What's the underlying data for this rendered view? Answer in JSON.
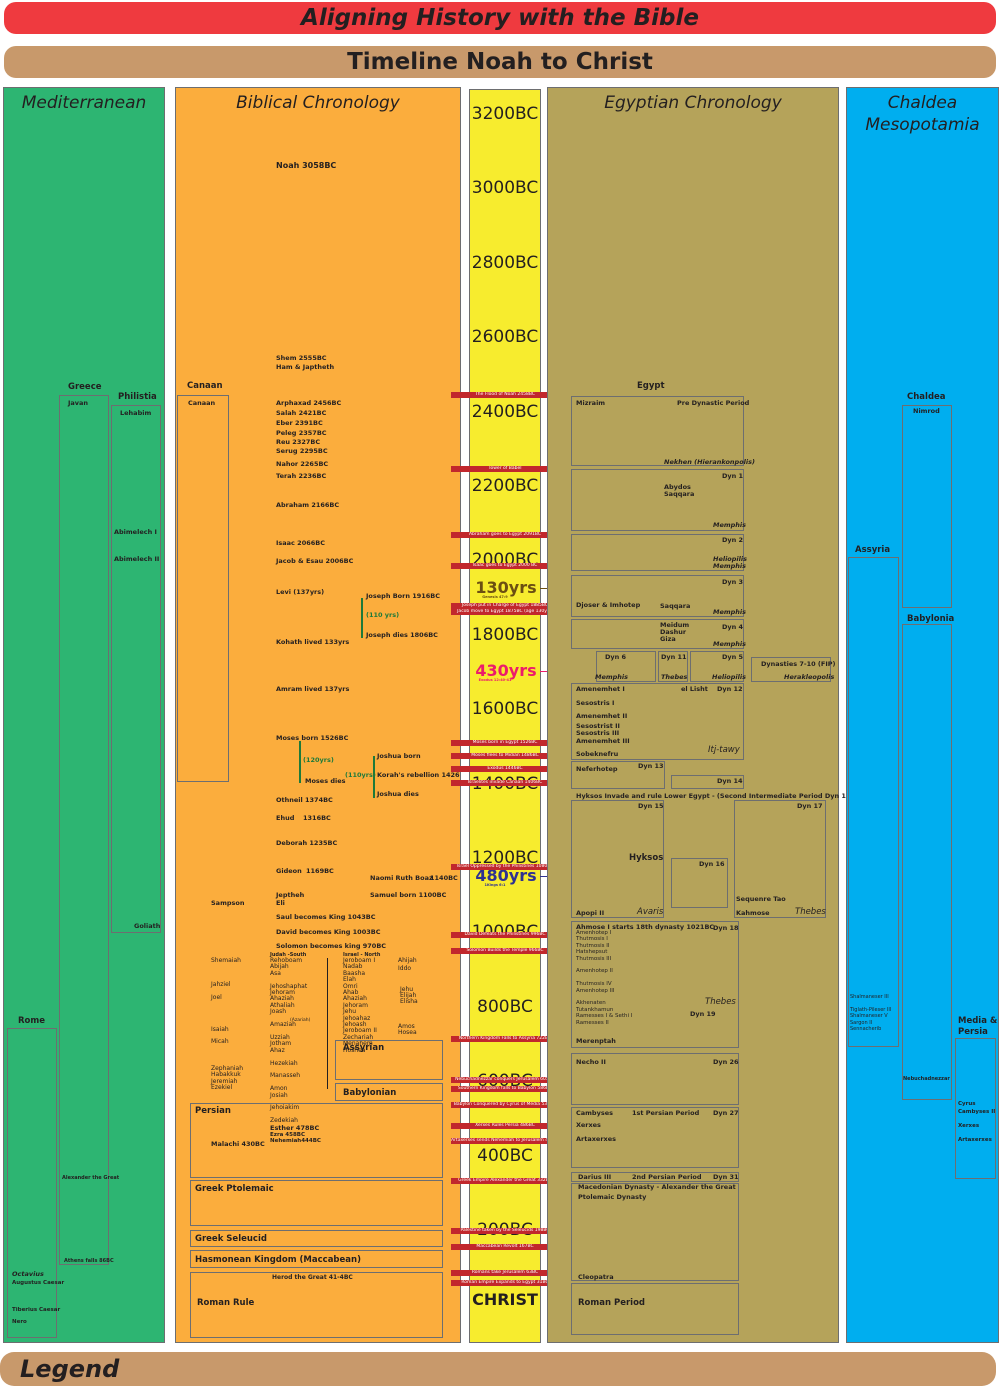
{
  "header": {
    "title": "Aligning History with the Bible",
    "subtitle": "Timeline Noah to Christ",
    "legend": "Legend"
  },
  "columns": {
    "mediterranean": "Mediterranean",
    "biblical": "Biblical Chronology",
    "egyptian": "Egyptian Chronology",
    "chaldea_line1": "Chaldea",
    "chaldea_line2": "Mesopotamia"
  },
  "colors": {
    "mediterranean": "#2db572",
    "biblical": "#fbad3d",
    "scale": "#f7ec2e",
    "egyptian": "#b5a35a",
    "chaldea": "#00aeef",
    "event": "#c1272d"
  },
  "years": [
    "3200BC",
    "3000BC",
    "2800BC",
    "2600BC",
    "2400BC",
    "2200BC",
    "2000BC",
    "1800BC",
    "1600BC",
    "1400BC",
    "1200BC",
    "1000BC",
    "800BC",
    "600BC",
    "400BC",
    "200BC"
  ],
  "christ": "CHRIST",
  "spans": {
    "s130": "130yrs",
    "s130_note": "Genesis 47:9",
    "s430": "430yrs",
    "s430_note": "Exodus 12:40-41",
    "s480": "480yrs",
    "s480_note": "1Kings 6:1"
  },
  "events": [
    "The Flood of Noah 2458BC",
    "Tower of Babel",
    "Abraham goes to Egypt 2091BC",
    "Isaac goes to Egypt 2000 BC",
    "Joseph put in Charge of Egypt 1885BC",
    "Jacob move to Egypt 1875BC (age 130yrs)",
    "Moses born in Egypt 1526BC",
    "Moses flees to Midian 1486BC",
    "Exodus 1446BC",
    "Israelites invade Canaan 1406BC",
    "Israel Oppressed by the Philistines 1080BC",
    "David Defeats the Philistines 996BC",
    "Solomon Builds the Temple 966BC",
    "Northern Kingdom Falls to Assyria 722BC",
    "Nebuchadnezzar conquers Jerusalem 605BC",
    "Southern Kingdom falls to Babylon 586BC",
    "Babylon Conquered by Cyrus of Media 539BC",
    "Xerxes Rules Persia 486BC",
    "Artaxerxes sends Nehemiah to Jerusalem 444BC",
    "Greek Empire Alexander the Great 332BC",
    "Palestine taken by the Seleucids 198BC",
    "Maccabean Revolt 167BC",
    "Romans take Jerusalem 63BC",
    "Roman Empire Expands to Egypt 31BC"
  ],
  "mediterranean": {
    "greece": "Greece",
    "javan": "Javan",
    "philistia": "Philistia",
    "lehabim": "Lehabim",
    "abimelech1": "Abimelech I",
    "abimelech2": "Abimelech II",
    "goliath": "Goliath",
    "alexander": "Alexander the Great",
    "athens": "Athens falls 86BC",
    "rome": "Rome",
    "octavius": "Octavius",
    "augustus": "Augustus Caesar",
    "tiberius": "Tiberius Caesar",
    "nero": "Nero"
  },
  "biblical": {
    "noah": "Noah 3058BC",
    "shem": "Shem 2555BC",
    "ham": "Ham & Japtheth",
    "canaan_label": "Canaan",
    "canaan_box": "Canaan",
    "patriarchs": [
      "Arphaxad 2456BC",
      "Salah 2421BC",
      "Eber 2391BC",
      "Peleg 2357BC",
      "Reu 2327BC",
      "Serug 2295BC"
    ],
    "nahor": "Nahor 2265BC",
    "terah": "Terah 2236BC",
    "abraham": "Abraham 2166BC",
    "isaac": "Isaac 2066BC",
    "jacob": "Jacob & Esau 2006BC",
    "levi": "Levi (137yrs)",
    "joseph_born": "Joseph Born 1916BC",
    "joseph_110": "(110 yrs)",
    "joseph_dies": "Joseph dies 1806BC",
    "kohath": "Kohath lived 133yrs",
    "amram": "Amram lived 137yrs",
    "moses_born": "Moses born 1526BC",
    "moses_120": "(120yrs)",
    "moses_dies": "Moses dies",
    "joshua_110": "(110yrs)",
    "joshua_born": "Joshua born",
    "korah": "Korah's rebellion 1426",
    "joshua_dies": "Joshua dies",
    "othneil": "Othneil 1374BC",
    "ehud": "Ehud",
    "ehud_year": "1316BC",
    "deborah": "Deborah 1235BC",
    "gideon": "Gideon",
    "gideon_year": "1169BC",
    "naomi": "Naomi Ruth Boaz",
    "naomi_year": "1140BC",
    "jeptheh": "Jeptheh",
    "eli": "Eli",
    "samuel": "Samuel born 1100BC",
    "sampson": "Sampson",
    "saul": "Saul becomes King 1043BC",
    "david": "David becomes King 1003BC",
    "solomon": "Solomon becomes king 970BC",
    "judah_head": "Judah -South",
    "israel_head": "Israel - North",
    "judah_kings": [
      "Rehoboam",
      "Abijah",
      "Asa",
      "",
      "Jehoshaphat",
      "Jehoram",
      "Ahaziah",
      "Athaliah",
      "Joash",
      "",
      "Amaziah",
      "",
      "Uzziah",
      "Jotham",
      "Ahaz",
      "",
      "Hezekiah",
      "",
      "Manasseh",
      "",
      "Amon",
      "Josiah",
      "",
      "Jehoiakim",
      "",
      "Zedekiah"
    ],
    "uzziah_note": "(Azariah)",
    "israel_kings": [
      "Jeroboam I",
      "Nadab",
      "Baasha",
      "Elah",
      "Omri",
      "Ahab",
      "Ahaziah",
      "Jehoram",
      "Jehu",
      "Jehoahaz",
      "Jehoash",
      "Jeroboam II",
      "Zechariah",
      "Menahem",
      "Hoshea"
    ],
    "prophets_left": {
      "shemaiah": "Shemaiah",
      "jahziel": "Jahziel",
      "joel": "Joel",
      "isaiah": "Isaiah",
      "micah": "Micah",
      "zephaniah": "Zephaniah",
      "habakkuk": "Habakkuk",
      "jeremiah": "Jeremiah",
      "ezekiel": "Ezekiel"
    },
    "prophets_right": {
      "ahijah": "Ahijah",
      "iddo": "Iddo",
      "jehu": "Jehu",
      "elijah": "Elijah",
      "elisha": "Elisha",
      "amos": "Amos",
      "hosea": "Hosea"
    },
    "assyrian": "Assyrian",
    "babylonian": "Babylonian",
    "persian": "Persian",
    "malachi": "Malachi 430BC",
    "esther": "Esther 478BC",
    "ezra": "Ezra 458BC",
    "nehemiah": "Nehemiah444BC",
    "ptolemaic": "Greek Ptolemaic",
    "seleucid": "Greek Seleucid",
    "hasmonean": "Hasmonean Kingdom (Maccabean)",
    "herod": "Herod the Great  41-4BC",
    "roman": "Roman Rule"
  },
  "egyptian": {
    "egypt": "Egypt",
    "mizraim": "Mizraim",
    "predynastic": "Pre Dynastic Period",
    "nekhen": "Nekhen (Hierankonpolis)",
    "dyn1": "Dyn 1",
    "abydos": "Abydos",
    "saqqara": "Saqqara",
    "memphis": "Memphis",
    "dyn2": "Dyn 2",
    "heliopolis": "Heliopilis",
    "dyn3": "Dyn 3",
    "djoser": "Djoser & Imhotep",
    "saqqara2": "Saqqara",
    "dyn4": "Dyn 4",
    "meidum": "Meidum",
    "dashur": "Dashur",
    "giza": "Giza",
    "dyn6": "Dyn 6",
    "dyn11": "Dyn 11",
    "dyn5": "Dyn 5",
    "thebes": "Thebes",
    "heliopolis2": "Heliopilis",
    "fip": "Dynasties 7-10 (FIP)",
    "herakleopolis": "Herakleopolis",
    "dyn12": "Dyn 12",
    "amenemhet1": "Amenemhet I",
    "ellisht": "el Lisht",
    "sesostris1": "Sesostris I",
    "amenemhet2": "Amenemhet II",
    "sesostris23": "Sesostrist II",
    "sesostris3": "Sesostris III",
    "amenemhet3": "Amenemhet III",
    "sobeknefru": "Sobeknefru",
    "itjtawy": "Itj-tawy",
    "dyn13": "Dyn 13",
    "neferhotep": "Neferhotep",
    "dyn14": "Dyn 14",
    "hyksos_title": "Hyksos Invade and rule Lower Egypt - (Second Intermediate Period  Dyn 15-17)",
    "dyn15": "Dyn 15",
    "dyn16": "Dyn 16",
    "dyn17": "Dyn 17",
    "hyksos": "Hyksos",
    "apopi": "Apopi II",
    "avaris": "Avaris",
    "sequenre": "Sequenre Tao",
    "kahmose": "Kahmose",
    "thebes2": "Thebes",
    "ahmose": "Ahmose I starts 18th dynasty 1021BC",
    "dyn18": "Dyn 18",
    "dyn18_list": [
      "Amenhotep I",
      "Thutmosis I",
      "Thutmosis II",
      "Hatshepsut",
      "Thutmosis III",
      "",
      "Amenhotep II",
      "",
      "Thutmosis IV",
      "Amenhotep III",
      "",
      "Akhenaten",
      "Tutankhamun",
      "Ramesses I & Sethi I",
      "Ramesses II"
    ],
    "thebes3": "Thebes",
    "dyn19": "Dyn 19",
    "merenptah": "Merenptah",
    "necho": "Necho II",
    "dyn26": "Dyn 26",
    "cambyses": "Cambyses",
    "persian1": "1st Persian Period",
    "dyn27": "Dyn 27",
    "xerxes": "Xerxes",
    "artaxerxes": "Artaxerxes",
    "darius": "Darius III",
    "persian2": "2nd Persian Period",
    "dyn31": "Dyn 31",
    "macedonian": "Macedonian Dynasty - Alexander the Great",
    "ptolemaic": "Ptolemaic Dynasty",
    "cleopatra": "Cleopatra",
    "roman": "Roman Period"
  },
  "chaldea": {
    "chaldea": "Chaldea",
    "nimrod": "Nimrod",
    "assyria": "Assyria",
    "babylonia": "Babylonia",
    "assyria_kings": [
      "Shalmaneser III",
      "",
      "Tiglath-Pileser III",
      "Shalmaneser V",
      "Sargon II",
      "Sennacherib"
    ],
    "nebuchadnezzar": "Nebuchadnezzar",
    "media": "Media &",
    "persia": "Persia",
    "cyrus": "Cyrus",
    "cambyses": "Cambyses II",
    "xerxes": "Xerxes",
    "artaxerxes": "Artaxerxes"
  }
}
